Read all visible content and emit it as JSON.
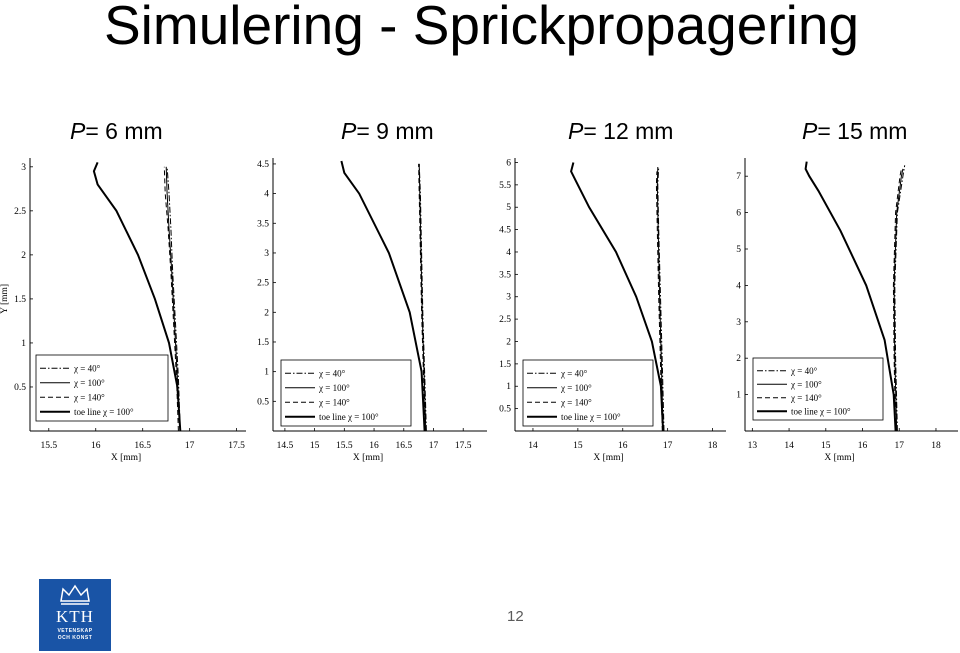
{
  "slide": {
    "title": "Simulering - Sprickpropagering",
    "page_number": "12",
    "logo": {
      "name": "KTH",
      "line1": "VETENSKAP",
      "line2": "OCH KONST"
    }
  },
  "chart_data": [
    {
      "type": "line",
      "title_var": "P",
      "title_rest": "= 6 mm",
      "xlabel": "X [mm]",
      "ylabel": "Y [mm]",
      "xlim": [
        15.3,
        17.6
      ],
      "ylim": [
        0,
        3.1
      ],
      "xticks": [
        "15.5",
        "16",
        "16.5",
        "17",
        "17.5"
      ],
      "yticks": [
        "0.5",
        "1",
        "1.5",
        "2",
        "2.5",
        "3"
      ],
      "legend": [
        "χ = 40°",
        "χ = 100°",
        "χ = 140°",
        "toe line χ = 100°"
      ],
      "series": [
        {
          "name": "χ = 40°",
          "style": "dashdot",
          "points": [
            [
              16.9,
              0
            ],
            [
              16.88,
              0.6
            ],
            [
              16.85,
              1.2
            ],
            [
              16.82,
              1.8
            ],
            [
              16.8,
              2.3
            ],
            [
              16.78,
              2.7
            ],
            [
              16.76,
              3.0
            ]
          ]
        },
        {
          "name": "χ = 100°",
          "style": "solid",
          "points": [
            [
              16.9,
              0
            ],
            [
              16.87,
              0.6
            ],
            [
              16.84,
              1.2
            ],
            [
              16.81,
              1.8
            ],
            [
              16.78,
              2.3
            ],
            [
              16.76,
              2.7
            ],
            [
              16.75,
              3.0
            ]
          ]
        },
        {
          "name": "χ = 140°",
          "style": "dashed",
          "points": [
            [
              16.88,
              0
            ],
            [
              16.86,
              0.6
            ],
            [
              16.83,
              1.2
            ],
            [
              16.8,
              1.8
            ],
            [
              16.77,
              2.3
            ],
            [
              16.74,
              2.7
            ],
            [
              16.73,
              3.0
            ]
          ]
        },
        {
          "name": "toe line χ = 100°",
          "style": "bold",
          "points": [
            [
              16.9,
              0
            ],
            [
              16.87,
              0.5
            ],
            [
              16.78,
              1.0
            ],
            [
              16.63,
              1.5
            ],
            [
              16.45,
              2.0
            ],
            [
              16.22,
              2.5
            ],
            [
              16.02,
              2.8
            ],
            [
              15.98,
              2.95
            ],
            [
              16.02,
              3.05
            ]
          ]
        }
      ]
    },
    {
      "type": "line",
      "title_var": "P",
      "title_rest": "= 9 mm",
      "xlabel": "X [mm]",
      "ylabel": "",
      "xlim": [
        14.3,
        17.9
      ],
      "ylim": [
        0,
        4.6
      ],
      "xticks": [
        "14.5",
        "15",
        "15.5",
        "16",
        "16.5",
        "17",
        "17.5"
      ],
      "yticks": [
        "0.5",
        "1",
        "1.5",
        "2",
        "2.5",
        "3",
        "3.5",
        "4",
        "4.5"
      ],
      "legend": [
        "χ = 40°",
        "χ = 100°",
        "χ = 140°",
        "toe line χ = 100°"
      ],
      "series": [
        {
          "name": "χ = 40°",
          "style": "dashdot",
          "points": [
            [
              16.88,
              0
            ],
            [
              16.85,
              1.0
            ],
            [
              16.82,
              2.0
            ],
            [
              16.8,
              3.0
            ],
            [
              16.78,
              4.0
            ],
            [
              16.76,
              4.5
            ]
          ]
        },
        {
          "name": "χ = 100°",
          "style": "solid",
          "points": [
            [
              16.87,
              0
            ],
            [
              16.84,
              1.0
            ],
            [
              16.81,
              2.0
            ],
            [
              16.79,
              3.0
            ],
            [
              16.77,
              4.0
            ],
            [
              16.76,
              4.5
            ]
          ]
        },
        {
          "name": "χ = 140°",
          "style": "dashed",
          "points": [
            [
              16.86,
              0
            ],
            [
              16.83,
              1.0
            ],
            [
              16.8,
              2.0
            ],
            [
              16.78,
              3.0
            ],
            [
              16.76,
              4.0
            ],
            [
              16.75,
              4.5
            ]
          ]
        },
        {
          "name": "toe line χ = 100°",
          "style": "bold",
          "points": [
            [
              16.85,
              0
            ],
            [
              16.8,
              1.0
            ],
            [
              16.6,
              2.0
            ],
            [
              16.25,
              3.0
            ],
            [
              15.75,
              4.0
            ],
            [
              15.5,
              4.35
            ],
            [
              15.45,
              4.55
            ]
          ]
        }
      ]
    },
    {
      "type": "line",
      "title_var": "P",
      "title_rest": "= 12 mm",
      "xlabel": "X [mm]",
      "ylabel": "",
      "xlim": [
        13.6,
        18.3
      ],
      "ylim": [
        0,
        6.1
      ],
      "xticks": [
        "14",
        "15",
        "16",
        "17",
        "18"
      ],
      "yticks": [
        "0.5",
        "1",
        "1.5",
        "2",
        "2.5",
        "3",
        "3.5",
        "4",
        "4.5",
        "5",
        "5.5",
        "6"
      ],
      "legend": [
        "χ = 40°",
        "χ = 100°",
        "χ = 140°",
        "toe line χ = 100°"
      ],
      "series": [
        {
          "name": "χ = 40°",
          "style": "dashdot",
          "points": [
            [
              16.92,
              0
            ],
            [
              16.88,
              1.5
            ],
            [
              16.84,
              3.0
            ],
            [
              16.8,
              4.5
            ],
            [
              16.78,
              5.5
            ],
            [
              16.8,
              5.9
            ]
          ]
        },
        {
          "name": "χ = 100°",
          "style": "solid",
          "points": [
            [
              16.9,
              0
            ],
            [
              16.86,
              1.5
            ],
            [
              16.82,
              3.0
            ],
            [
              16.79,
              4.5
            ],
            [
              16.77,
              5.5
            ],
            [
              16.78,
              5.9
            ]
          ]
        },
        {
          "name": "χ = 140°",
          "style": "dashed",
          "points": [
            [
              16.88,
              0
            ],
            [
              16.84,
              1.5
            ],
            [
              16.8,
              3.0
            ],
            [
              16.77,
              4.5
            ],
            [
              16.75,
              5.5
            ],
            [
              16.76,
              5.8
            ]
          ]
        },
        {
          "name": "toe line χ = 100°",
          "style": "bold",
          "points": [
            [
              16.9,
              0
            ],
            [
              16.85,
              1.0
            ],
            [
              16.65,
              2.0
            ],
            [
              16.3,
              3.0
            ],
            [
              15.85,
              4.0
            ],
            [
              15.25,
              5.0
            ],
            [
              14.95,
              5.6
            ],
            [
              14.85,
              5.8
            ],
            [
              14.9,
              6.0
            ]
          ]
        }
      ]
    },
    {
      "type": "line",
      "title_var": "P",
      "title_rest": "= 15 mm",
      "xlabel": "X [mm]",
      "ylabel": "",
      "xlim": [
        12.8,
        18.6
      ],
      "ylim": [
        0,
        7.5
      ],
      "xticks": [
        "13",
        "14",
        "15",
        "16",
        "17",
        "18"
      ],
      "yticks": [
        "1",
        "2",
        "3",
        "4",
        "5",
        "6",
        "7"
      ],
      "legend": [
        "χ = 40°",
        "χ = 100°",
        "χ = 140°",
        "toe line χ = 100°"
      ],
      "series": [
        {
          "name": "χ = 40°",
          "style": "dashdot",
          "points": [
            [
              16.95,
              0
            ],
            [
              16.9,
              2.0
            ],
            [
              16.88,
              4.0
            ],
            [
              16.95,
              6.0
            ],
            [
              17.1,
              7.0
            ],
            [
              17.15,
              7.3
            ]
          ]
        },
        {
          "name": "χ = 100°",
          "style": "solid",
          "points": [
            [
              16.93,
              0
            ],
            [
              16.88,
              2.0
            ],
            [
              16.86,
              4.0
            ],
            [
              16.93,
              6.0
            ],
            [
              17.06,
              7.0
            ],
            [
              17.1,
              7.2
            ]
          ]
        },
        {
          "name": "χ = 140°",
          "style": "dashed",
          "points": [
            [
              16.9,
              0
            ],
            [
              16.86,
              2.0
            ],
            [
              16.84,
              4.0
            ],
            [
              16.9,
              6.0
            ],
            [
              17.02,
              7.0
            ],
            [
              17.06,
              7.2
            ]
          ]
        },
        {
          "name": "toe line χ = 100°",
          "style": "bold",
          "points": [
            [
              16.9,
              0
            ],
            [
              16.85,
              1.0
            ],
            [
              16.6,
              2.5
            ],
            [
              16.1,
              4.0
            ],
            [
              15.4,
              5.5
            ],
            [
              14.8,
              6.6
            ],
            [
              14.55,
              7.0
            ],
            [
              14.45,
              7.2
            ],
            [
              14.48,
              7.4
            ]
          ]
        }
      ]
    }
  ]
}
